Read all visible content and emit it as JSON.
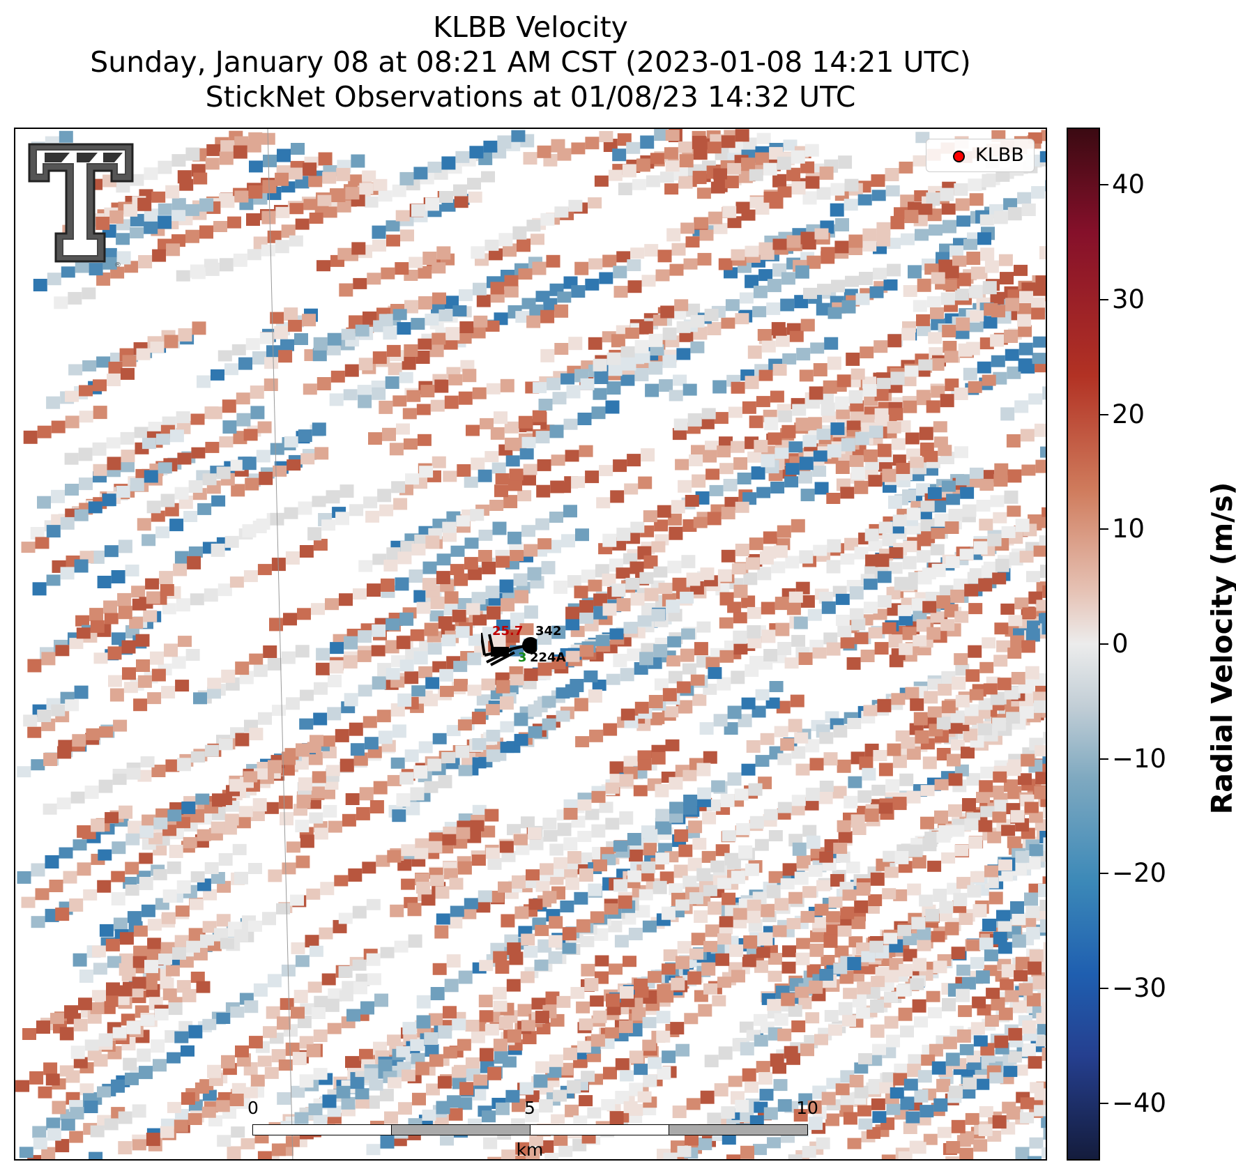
{
  "title": {
    "line1": "KLBB Velocity",
    "line2": "Sunday, January 08 at 08:21 AM CST (2023-01-08 14:21 UTC)",
    "line3": "StickNet Observations at 01/08/23 14:32 UTC"
  },
  "legend": {
    "label": "KLBB",
    "marker_color": "#ff0000"
  },
  "logo": {
    "icon": "texas-tech-double-t-logo"
  },
  "observation": {
    "temperature": "25.7",
    "temperature_color": "#c00000",
    "dewpoint_fragment": "3",
    "dewpoint_color": "#1a8a1a",
    "pressure_code": "342",
    "station_id": "224A"
  },
  "colorbar": {
    "label": "Radial Velocity (m/s)",
    "ticks": [
      "40",
      "30",
      "20",
      "10",
      "0",
      "−10",
      "−20",
      "−30",
      "−40"
    ],
    "range": [
      -45,
      45
    ]
  },
  "scalebar": {
    "labels": [
      "0",
      "5",
      "10"
    ],
    "unit": "km"
  }
}
